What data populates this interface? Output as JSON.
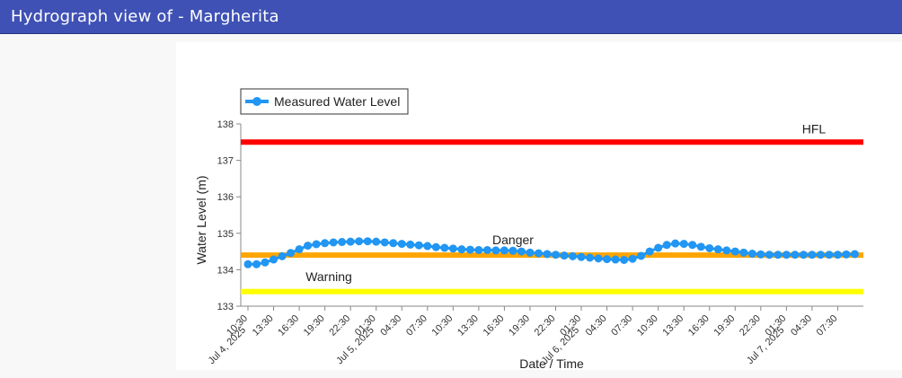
{
  "header": {
    "title": "Hydrograph view of - Margherita"
  },
  "colors": {
    "header_bg": "#3f51b5",
    "series": "#2196f3",
    "hfl": "#ff0000",
    "danger": "#ffa500",
    "warning": "#ffff00"
  },
  "chart_data": {
    "type": "line",
    "xlabel": "Date / Time",
    "ylabel": "Water Level (m)",
    "ylim": [
      133,
      138
    ],
    "yticks": [
      "133",
      "134",
      "135",
      "136",
      "137",
      "138"
    ],
    "x_unit": "hours",
    "xlim": [
      0,
      72
    ],
    "xticks": [
      {
        "t": 0,
        "label": "10:30"
      },
      {
        "t": 3,
        "label": "13:30"
      },
      {
        "t": 6,
        "label": "16:30"
      },
      {
        "t": 9,
        "label": "19:30"
      },
      {
        "t": 12,
        "label": "22:30"
      },
      {
        "t": 15,
        "label": "01:30"
      },
      {
        "t": 18,
        "label": "04:30"
      },
      {
        "t": 21,
        "label": "07:30"
      },
      {
        "t": 24,
        "label": "10:30"
      },
      {
        "t": 27,
        "label": "13:30"
      },
      {
        "t": 30,
        "label": "16:30"
      },
      {
        "t": 33,
        "label": "19:30"
      },
      {
        "t": 36,
        "label": "22:30"
      },
      {
        "t": 39,
        "label": "01:30"
      },
      {
        "t": 42,
        "label": "04:30"
      },
      {
        "t": 45,
        "label": "07:30"
      },
      {
        "t": 48,
        "label": "10:30"
      },
      {
        "t": 51,
        "label": "13:30"
      },
      {
        "t": 54,
        "label": "16:30"
      },
      {
        "t": 57,
        "label": "19:30"
      },
      {
        "t": 60,
        "label": "22:30"
      },
      {
        "t": 63,
        "label": "01:30"
      },
      {
        "t": 66,
        "label": "04:30"
      },
      {
        "t": 69,
        "label": "07:30"
      }
    ],
    "date_labels": [
      {
        "t": 0,
        "label": "Jul 4, 2025"
      },
      {
        "t": 15,
        "label": "Jul 5, 2025"
      },
      {
        "t": 39,
        "label": "Jul 6, 2025"
      },
      {
        "t": 63,
        "label": "Jul 7, 2025"
      }
    ],
    "legend": {
      "position": "top-left",
      "entries": [
        "Measured Water Level"
      ]
    },
    "series": [
      {
        "name": "Measured Water Level",
        "x": [
          0,
          1,
          2,
          3,
          4,
          5,
          6,
          7,
          8,
          9,
          10,
          11,
          12,
          13,
          14,
          15,
          16,
          17,
          18,
          19,
          20,
          21,
          22,
          23,
          24,
          25,
          26,
          27,
          28,
          29,
          30,
          31,
          32,
          33,
          34,
          35,
          36,
          37,
          38,
          39,
          40,
          41,
          42,
          43,
          44,
          45,
          46,
          47,
          48,
          49,
          50,
          51,
          52,
          53,
          54,
          55,
          56,
          57,
          58,
          59,
          60,
          61,
          62,
          63,
          64,
          65,
          66,
          67,
          68,
          69,
          70,
          71
        ],
        "y": [
          134.15,
          134.15,
          134.2,
          134.28,
          134.37,
          134.46,
          134.56,
          134.66,
          134.7,
          134.73,
          134.75,
          134.76,
          134.77,
          134.78,
          134.78,
          134.77,
          134.75,
          134.73,
          134.71,
          134.69,
          134.67,
          134.65,
          134.62,
          134.6,
          134.58,
          134.56,
          134.55,
          134.54,
          134.54,
          134.53,
          134.53,
          134.52,
          134.5,
          134.47,
          134.45,
          134.43,
          134.41,
          134.39,
          134.37,
          134.35,
          134.33,
          134.31,
          134.29,
          134.28,
          134.27,
          134.3,
          134.38,
          134.5,
          134.6,
          134.68,
          134.72,
          134.71,
          134.68,
          134.63,
          134.59,
          134.56,
          134.53,
          134.5,
          134.47,
          134.44,
          134.42,
          134.41,
          134.41,
          134.41,
          134.41,
          134.41,
          134.41,
          134.41,
          134.41,
          134.41,
          134.42,
          134.43
        ]
      }
    ],
    "thresholds": [
      {
        "label": "HFL",
        "value": 137.5
      },
      {
        "label": "Danger",
        "value": 134.4
      },
      {
        "label": "Warning",
        "value": 133.4
      }
    ]
  }
}
